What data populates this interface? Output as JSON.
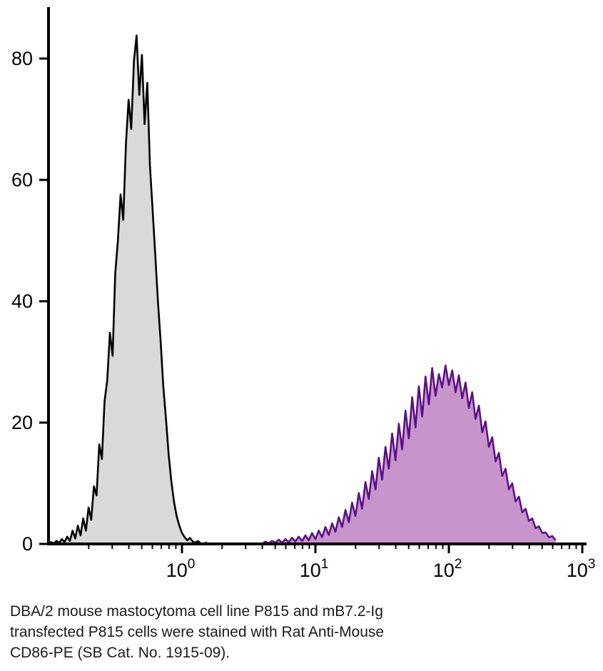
{
  "caption": [
    "DBA/2 mouse mastocytoma cell line P815 and mB7.2-Ig",
    "transfected P815 cells were stained with Rat Anti-Mouse",
    "CD86-PE (SB Cat. No. 1915-09)."
  ],
  "chart_data": {
    "type": "area",
    "subtype": "flow-cytometry-histogram",
    "x_scale": "log10",
    "xlim_log": [
      -1,
      3
    ],
    "ylim": [
      0,
      88
    ],
    "y_ticks": [
      {
        "value": 0,
        "label": "0"
      },
      {
        "value": 20,
        "label": "20"
      },
      {
        "value": 40,
        "label": "40"
      },
      {
        "value": 60,
        "label": "60"
      },
      {
        "value": 80,
        "label": "80"
      }
    ],
    "x_ticks": [
      {
        "log": 0,
        "base": "10",
        "exp": "0"
      },
      {
        "log": 1,
        "base": "10",
        "exp": "1"
      },
      {
        "log": 2,
        "base": "10",
        "exp": "2"
      },
      {
        "log": 3,
        "base": "10",
        "exp": "3"
      }
    ],
    "grid": false,
    "legend": "none",
    "axis_color": "#000000",
    "series": [
      {
        "name": "control-peak",
        "stroke": "#000000",
        "fill": "#d9d9d9",
        "stroke_width": 2.6,
        "log_start": -1.0,
        "log_step": 0.02,
        "values": [
          0,
          0.3,
          0.1,
          0.5,
          0.2,
          0.8,
          0.3,
          1.2,
          0.5,
          2.2,
          0.9,
          3,
          1.4,
          4.2,
          2.2,
          6,
          4,
          9.5,
          8,
          16.4,
          14,
          23.5,
          27,
          34.8,
          31,
          44.6,
          50,
          57.6,
          53.4,
          66,
          73.2,
          68.4,
          79.6,
          83.8,
          74,
          80.6,
          69.2,
          76,
          62.4,
          55,
          47.6,
          40,
          33.4,
          26,
          20.6,
          14.8,
          10.4,
          7,
          4.6,
          3,
          1.8,
          1.1,
          0.6,
          1,
          0.4,
          0.2,
          0.5,
          0.1,
          0,
          0.2,
          0
        ]
      },
      {
        "name": "stained-peak",
        "stroke": "#5a1287",
        "fill": "#c794cb",
        "stroke_width": 2.6,
        "log_start": 0.6,
        "log_step": 0.025,
        "values": [
          0,
          0.4,
          0.1,
          0.5,
          0.2,
          0.7,
          0.2,
          0.8,
          0.3,
          1,
          0.4,
          1.2,
          0.5,
          1.4,
          0.6,
          1.8,
          0.8,
          2.2,
          1.1,
          2.8,
          1.5,
          3.4,
          2,
          4.4,
          2.8,
          5.6,
          3.6,
          6.8,
          4.6,
          8.4,
          5.8,
          10.2,
          7.4,
          12,
          9,
          14.2,
          10.6,
          16,
          12.4,
          18.2,
          13.8,
          19.8,
          15.6,
          22,
          17.4,
          24.2,
          19.2,
          26,
          21,
          27.6,
          23,
          29,
          24.4,
          28,
          25.8,
          29.4,
          26.2,
          28.6,
          25,
          27.8,
          24,
          26.6,
          22.4,
          25,
          20.6,
          22.8,
          18.4,
          20.2,
          16,
          17.6,
          13.6,
          15,
          11.2,
          12.4,
          9,
          10,
          7,
          7.8,
          5.2,
          5.8,
          3.8,
          4.2,
          2.6,
          2.9,
          1.8,
          1.9,
          1.1,
          1.3,
          0.6
        ]
      }
    ]
  }
}
